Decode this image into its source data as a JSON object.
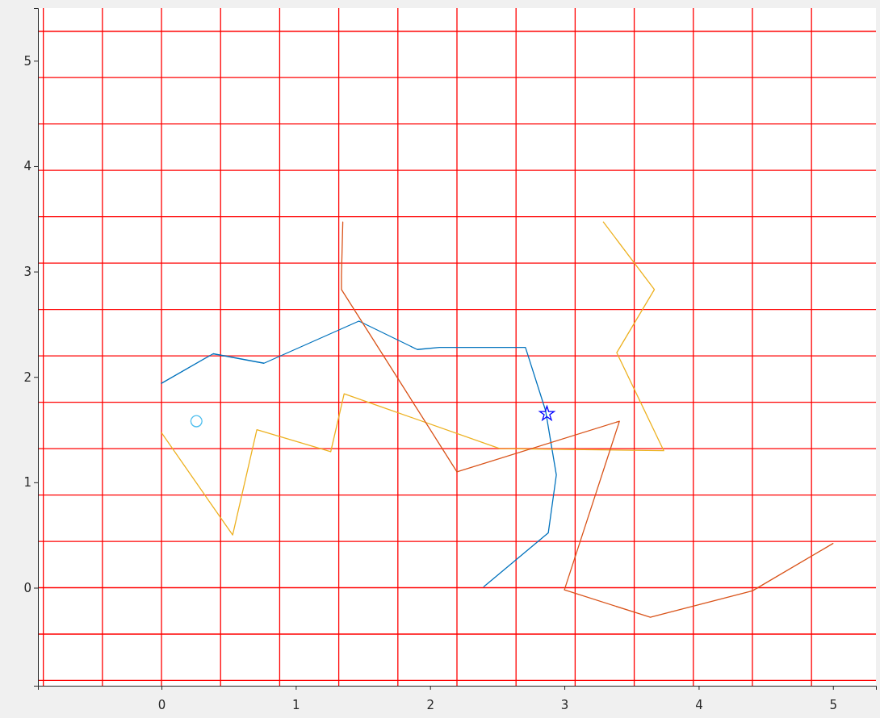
{
  "chart_data": {
    "type": "line",
    "xlim": [
      -0.92,
      5.32
    ],
    "ylim": [
      -0.93,
      5.5
    ],
    "xticks": [
      0,
      1,
      2,
      3,
      4,
      5
    ],
    "yticks": [
      0,
      1,
      2,
      3,
      4,
      5
    ],
    "grid": false,
    "line_style": "solid",
    "series": [
      {
        "color": "#0072bd",
        "marker": "none",
        "x": [
          0,
          0.385,
          0.763,
          1.47,
          1.905,
          2.07,
          2.71,
          2.86,
          2.94,
          2.88,
          2.4
        ],
        "values": [
          1.94,
          2.22,
          2.13,
          2.53,
          2.26,
          2.28,
          2.28,
          1.68,
          1.07,
          0.52,
          0.01
        ]
      },
      {
        "color": "#edb120",
        "marker": "none",
        "x": [
          0,
          0.53,
          0.71,
          1.26,
          1.36,
          2.52,
          3.74,
          3.39,
          3.67,
          3.29
        ],
        "values": [
          1.47,
          0.5,
          1.5,
          1.29,
          1.84,
          1.32,
          1.3,
          2.23,
          2.83,
          3.47
        ]
      },
      {
        "color": "#d95319",
        "marker": "none",
        "x": [
          1.35,
          1.34,
          1.34,
          2.2,
          3.41,
          3.0,
          3.64,
          4.4,
          5.0
        ],
        "values": [
          3.47,
          2.96,
          2.83,
          1.1,
          1.58,
          -0.02,
          -0.28,
          -0.03,
          0.42
        ]
      },
      {
        "type": "scatter",
        "color": "#0000ff",
        "marker": "star",
        "x": [
          2.87
        ],
        "values": [
          1.65
        ]
      },
      {
        "type": "scatter",
        "color": "#4dbeee",
        "marker": "circle",
        "x": [
          0.26
        ],
        "values": [
          1.58
        ]
      }
    ],
    "ref_lines": [
      {
        "axis": "x",
        "value": -0.88,
        "color": "#ff0000"
      },
      {
        "axis": "x",
        "value": -0.44,
        "color": "#ff0000"
      },
      {
        "axis": "x",
        "value": 0,
        "color": "#ff0000"
      },
      {
        "axis": "x",
        "value": 0.44,
        "color": "#ff0000"
      },
      {
        "axis": "x",
        "value": 0.88,
        "color": "#ff0000"
      },
      {
        "axis": "x",
        "value": 1.32,
        "color": "#ff0000"
      },
      {
        "axis": "x",
        "value": 1.76,
        "color": "#ff0000"
      },
      {
        "axis": "x",
        "value": 2.2,
        "color": "#ff0000"
      },
      {
        "axis": "x",
        "value": 2.64,
        "color": "#ff0000"
      },
      {
        "axis": "x",
        "value": 3.08,
        "color": "#ff0000"
      },
      {
        "axis": "x",
        "value": 3.52,
        "color": "#ff0000"
      },
      {
        "axis": "x",
        "value": 3.96,
        "color": "#ff0000"
      },
      {
        "axis": "x",
        "value": 4.4,
        "color": "#ff0000"
      },
      {
        "axis": "x",
        "value": 4.84,
        "color": "#ff0000"
      },
      {
        "axis": "y",
        "value": -0.88,
        "color": "#ff0000"
      },
      {
        "axis": "y",
        "value": -0.44,
        "color": "#ff0000"
      },
      {
        "axis": "y",
        "value": 0,
        "color": "#ff0000"
      },
      {
        "axis": "y",
        "value": 0.44,
        "color": "#ff0000"
      },
      {
        "axis": "y",
        "value": 0.88,
        "color": "#ff0000"
      },
      {
        "axis": "y",
        "value": 1.32,
        "color": "#ff0000"
      },
      {
        "axis": "y",
        "value": 1.76,
        "color": "#ff0000"
      },
      {
        "axis": "y",
        "value": 2.2,
        "color": "#ff0000"
      },
      {
        "axis": "y",
        "value": 2.64,
        "color": "#ff0000"
      },
      {
        "axis": "y",
        "value": 3.08,
        "color": "#ff0000"
      },
      {
        "axis": "y",
        "value": 3.52,
        "color": "#ff0000"
      },
      {
        "axis": "y",
        "value": 3.96,
        "color": "#ff0000"
      },
      {
        "axis": "y",
        "value": 4.4,
        "color": "#ff0000"
      },
      {
        "axis": "y",
        "value": 4.84,
        "color": "#ff0000"
      },
      {
        "axis": "y",
        "value": 5.28,
        "color": "#ff0000"
      }
    ]
  }
}
